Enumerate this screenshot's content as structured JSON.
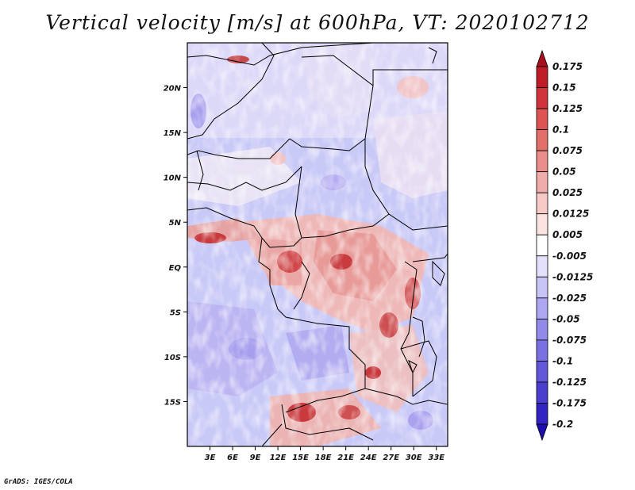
{
  "title": "Vertical velocity [m/s] at 600hPa, VT: 2020102712",
  "credit": "GrADS: IGES/COLA",
  "map": {
    "field": "Vertical velocity",
    "units": "m/s",
    "level": "600hPa",
    "valid_time": "2020102712",
    "lon_range": [
      0,
      34.5
    ],
    "lat_range": [
      -20,
      25
    ],
    "x_tick_labels": [
      "3E",
      "6E",
      "9E",
      "12E",
      "15E",
      "18E",
      "21E",
      "24E",
      "27E",
      "30E",
      "33E"
    ],
    "y_tick_labels": [
      "20N",
      "15N",
      "10N",
      "5N",
      "EQ",
      "5S",
      "10S",
      "15S"
    ],
    "colors": {
      "background_blue": "#c9c9f7",
      "background_white": "#f4f2fb",
      "positive_red": "#e8908c",
      "strong_red": "#b5121b",
      "strong_blue": "#6e63dd",
      "borders": "#000000"
    }
  },
  "colorbar": {
    "labels": [
      "0.175",
      "0.15",
      "0.125",
      "0.1",
      "0.075",
      "0.05",
      "0.025",
      "0.0125",
      "0.005",
      "-0.005",
      "-0.0125",
      "-0.025",
      "-0.05",
      "-0.075",
      "-0.1",
      "-0.125",
      "-0.175",
      "-0.2"
    ],
    "colors": [
      "#a6111b",
      "#c01c27",
      "#d2343c",
      "#dd5453",
      "#e36f6b",
      "#e98e8a",
      "#f0aca8",
      "#f6cac7",
      "#fbe3e1",
      "#ffffff",
      "#e3e0fb",
      "#c9c4f6",
      "#ada6f0",
      "#928ae8",
      "#7a70e1",
      "#6257d8",
      "#4a3ecf",
      "#3124c2",
      "#1c0fae"
    ]
  }
}
